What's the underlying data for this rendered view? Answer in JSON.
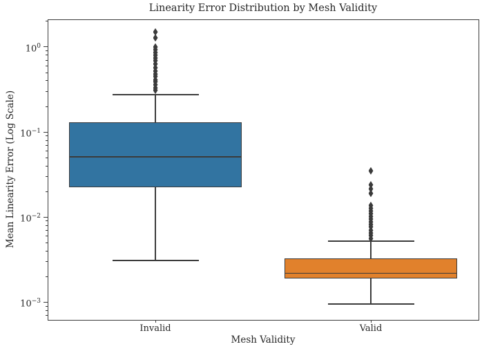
{
  "figure": {
    "title": "Linearity Error Distribution by Mesh Validity",
    "xlabel": "Mesh Validity",
    "ylabel": "Mean Linearity Error (Log Scale)"
  },
  "chart_data": {
    "type": "boxplot",
    "title": "Linearity Error Distribution by Mesh Validity",
    "xlabel": "Mesh Validity",
    "ylabel": "Mean Linearity Error (Log Scale)",
    "log_scale_y": true,
    "grid": false,
    "categories": [
      "Invalid",
      "Valid"
    ],
    "y_axis": {
      "min": 0.00062,
      "max": 2.11,
      "major_ticks": [
        {
          "base": "10",
          "exp": "0",
          "value": 1
        },
        {
          "base": "10",
          "exp": "−1",
          "value": 0.1
        },
        {
          "base": "10",
          "exp": "−2",
          "value": 0.01
        },
        {
          "base": "10",
          "exp": "−3",
          "value": 0.001
        }
      ]
    },
    "style": {
      "line_color": "#3b3b3b",
      "spine_color": "#3a3a3a",
      "text_color": "#262626",
      "invalid_box_color": "#3274a1",
      "valid_box_color": "#e1812c"
    },
    "series": [
      {
        "name": "Invalid",
        "color": "#3274a1",
        "whisker_low": 0.0031,
        "q1": 0.0224,
        "median": 0.0513,
        "q3": 0.131,
        "whisker_high": 0.275,
        "outliers": [
          1.5,
          1.28,
          1.0,
          0.93,
          0.86,
          0.8,
          0.74,
          0.69,
          0.63,
          0.57,
          0.52,
          0.48,
          0.45,
          0.41,
          0.39,
          0.36,
          0.33,
          0.31
        ]
      },
      {
        "name": "Valid",
        "color": "#e1812c",
        "whisker_low": 0.00095,
        "q1": 0.0019,
        "median": 0.0022,
        "q3": 0.0033,
        "whisker_high": 0.0052,
        "outliers": [
          0.035,
          0.024,
          0.0215,
          0.019,
          0.0137,
          0.0127,
          0.0118,
          0.011,
          0.0102,
          0.0095,
          0.0088,
          0.0082,
          0.0077,
          0.007,
          0.0065,
          0.0061,
          0.0056
        ]
      }
    ]
  }
}
